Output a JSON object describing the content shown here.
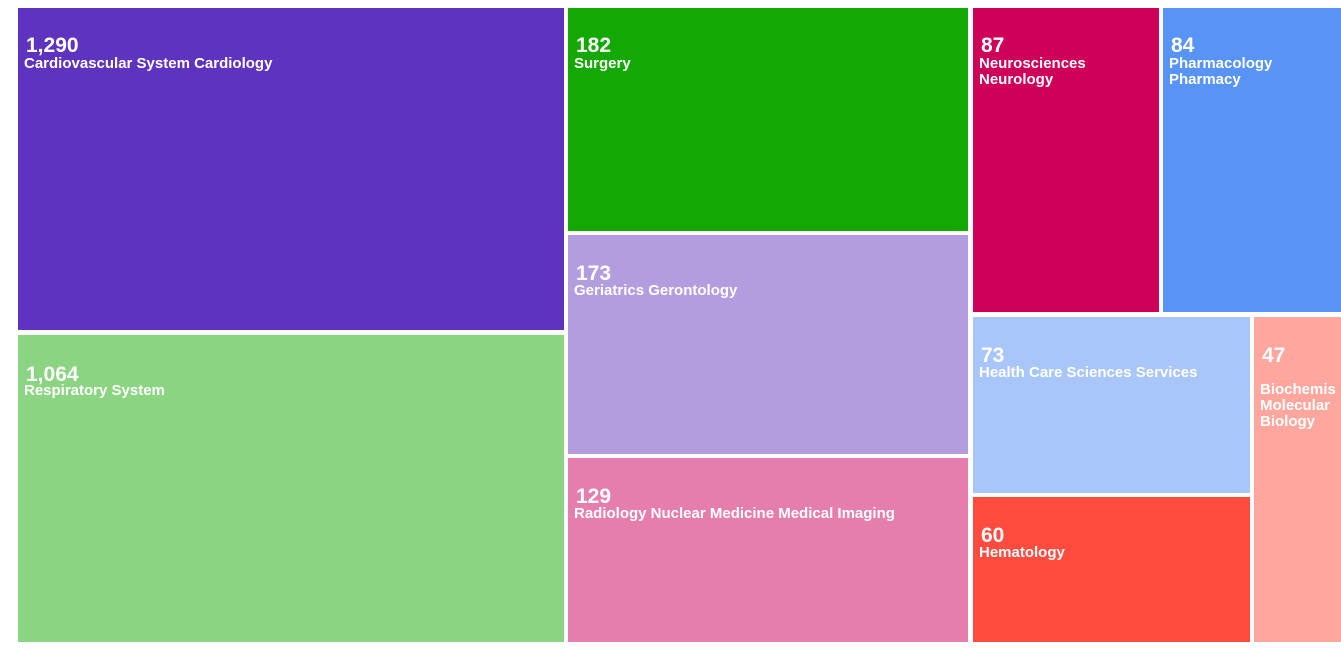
{
  "chart_data": {
    "type": "treemap",
    "items": [
      {
        "value": 1290,
        "value_label": "1,290",
        "label_lines": [
          "Cardiovascular System Cardiology"
        ],
        "color": "#5E33BF"
      },
      {
        "value": 1064,
        "value_label": "1,064",
        "label_lines": [
          "Respiratory System"
        ],
        "color": "#8BD582"
      },
      {
        "value": 182,
        "value_label": "182",
        "label_lines": [
          "Surgery"
        ],
        "color": "#13A802"
      },
      {
        "value": 173,
        "value_label": "173",
        "label_lines": [
          "Geriatrics Gerontology"
        ],
        "color": "#B39DDE"
      },
      {
        "value": 129,
        "value_label": "129",
        "label_lines": [
          "Radiology Nuclear Medicine Medical Imaging"
        ],
        "color": "#E57EAD"
      },
      {
        "value": 87,
        "value_label": "87",
        "label_lines": [
          "Neurosciences",
          "Neurology"
        ],
        "color": "#CE0059"
      },
      {
        "value": 84,
        "value_label": "84",
        "label_lines": [
          "Pharmacology",
          "Pharmacy"
        ],
        "color": "#5893F6"
      },
      {
        "value": 73,
        "value_label": "73",
        "label_lines": [
          "Health Care Sciences Services"
        ],
        "color": "#A8C6F9"
      },
      {
        "value": 60,
        "value_label": "60",
        "label_lines": [
          "Hematology"
        ],
        "color": "#FF4C3F"
      },
      {
        "value": 47,
        "value_label": "47",
        "label_lines": [
          "Biochemis",
          "Molecular",
          "Biology"
        ],
        "color": "#FFA69E"
      }
    ]
  }
}
